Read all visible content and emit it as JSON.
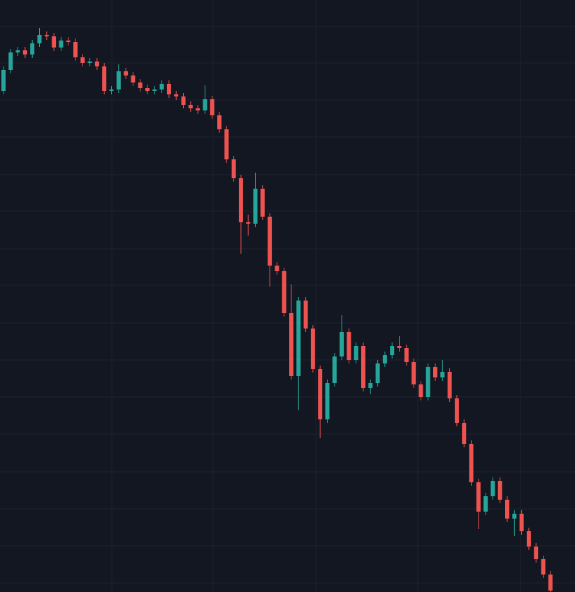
{
  "chart_data": {
    "type": "candlestick",
    "open": [
      717,
      747,
      772,
      775,
      769,
      785,
      797,
      795,
      779,
      789,
      787,
      765,
      757,
      759,
      752,
      717,
      719,
      745,
      739,
      729,
      721,
      717,
      719,
      727,
      712,
      709,
      697,
      692,
      689,
      705,
      682,
      662,
      619,
      592,
      529,
      527,
      577,
      537,
      467,
      459,
      399,
      309,
      417,
      377,
      319,
      247,
      299,
      337,
      372,
      332,
      352,
      292,
      299,
      327,
      339,
      352,
      349,
      329,
      297,
      279,
      322,
      307,
      315,
      277,
      242,
      212,
      157,
      115,
      137,
      159,
      132,
      105,
      112,
      87,
      65,
      47,
      25
    ],
    "high": [
      752,
      777,
      780,
      780,
      790,
      807,
      802,
      800,
      794,
      794,
      792,
      770,
      764,
      764,
      757,
      724,
      755,
      750,
      744,
      734,
      726,
      724,
      732,
      732,
      717,
      714,
      702,
      697,
      725,
      710,
      687,
      667,
      624,
      597,
      540,
      600,
      582,
      542,
      472,
      464,
      440,
      422,
      422,
      382,
      324,
      304,
      342,
      396,
      377,
      357,
      357,
      304,
      332,
      344,
      357,
      366,
      354,
      334,
      302,
      327,
      327,
      332,
      320,
      282,
      247,
      217,
      162,
      142,
      164,
      164,
      137,
      117,
      117,
      92,
      70,
      52,
      30
    ],
    "low": [
      712,
      742,
      767,
      764,
      764,
      780,
      790,
      774,
      774,
      782,
      760,
      752,
      752,
      747,
      712,
      712,
      714,
      734,
      724,
      716,
      712,
      712,
      714,
      707,
      704,
      692,
      687,
      684,
      684,
      677,
      657,
      614,
      587,
      484,
      510,
      522,
      532,
      437,
      454,
      394,
      304,
      260,
      372,
      314,
      220,
      242,
      294,
      332,
      327,
      327,
      287,
      283,
      294,
      322,
      334,
      344,
      324,
      292,
      274,
      274,
      302,
      302,
      272,
      237,
      207,
      152,
      90,
      110,
      132,
      127,
      100,
      80,
      82,
      60,
      42,
      20,
      0
    ],
    "close": [
      747,
      772,
      775,
      769,
      785,
      797,
      795,
      779,
      789,
      787,
      765,
      757,
      759,
      752,
      717,
      719,
      745,
      739,
      729,
      721,
      717,
      719,
      727,
      712,
      709,
      697,
      692,
      689,
      705,
      682,
      662,
      619,
      592,
      529,
      527,
      577,
      537,
      467,
      459,
      399,
      309,
      417,
      377,
      319,
      247,
      299,
      337,
      372,
      332,
      352,
      292,
      299,
      327,
      339,
      352,
      349,
      329,
      297,
      279,
      322,
      307,
      315,
      277,
      242,
      212,
      157,
      115,
      137,
      159,
      132,
      105,
      112,
      87,
      65,
      47,
      25,
      2
    ],
    "up_color": "#26a69a",
    "down_color": "#ef5350",
    "ylim": [
      0,
      847
    ],
    "yticks": [
      809,
      757,
      704,
      651,
      597,
      545,
      491,
      439,
      385,
      332,
      279,
      226,
      172,
      119,
      66,
      13
    ],
    "xticks": [
      15.05,
      29.13,
      43.4,
      57.57,
      71.84
    ],
    "grid": true
  }
}
